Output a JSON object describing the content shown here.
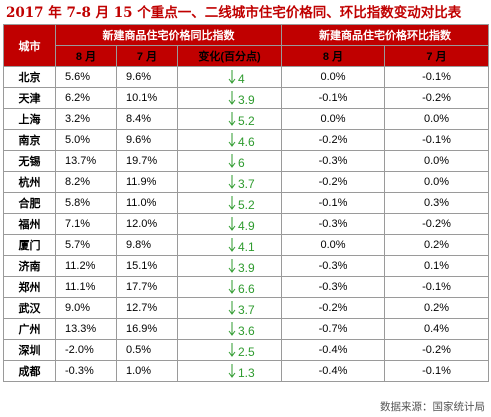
{
  "title": "2017 年 7-8 月 15 个重点一、二线城市住宅价格同、环比指数变动对比表",
  "headers": {
    "city": "城市",
    "yoy_group": "新建商品住宅价格同比指数",
    "mom_group": "新建商品住宅价格环比指数",
    "aug": "8 月",
    "jul": "7 月",
    "change": "变化(百分点)"
  },
  "source": "数据来源：国家统计局",
  "colors": {
    "header_bg": "#c00000",
    "title": "#c00000",
    "decline_arrow": "#2e9b2e",
    "negative_text": "#1a9a1a"
  },
  "chart_data": {
    "type": "table",
    "columns": [
      "城市",
      "同比 8月",
      "同比 7月",
      "同比 变化(百分点)",
      "环比 8月",
      "环比 7月"
    ],
    "rows": [
      {
        "city": "北京",
        "yoy_aug": "5.6%",
        "yoy_jul": "9.6%",
        "change": "4",
        "mom_aug": "0.0%",
        "mom_jul": "-0.1%"
      },
      {
        "city": "天津",
        "yoy_aug": "6.2%",
        "yoy_jul": "10.1%",
        "change": "3.9",
        "mom_aug": "-0.1%",
        "mom_jul": "-0.2%"
      },
      {
        "city": "上海",
        "yoy_aug": "3.2%",
        "yoy_jul": "8.4%",
        "change": "5.2",
        "mom_aug": "0.0%",
        "mom_jul": "0.0%"
      },
      {
        "city": "南京",
        "yoy_aug": "5.0%",
        "yoy_jul": "9.6%",
        "change": "4.6",
        "mom_aug": "-0.2%",
        "mom_jul": "-0.1%"
      },
      {
        "city": "无锡",
        "yoy_aug": "13.7%",
        "yoy_jul": "19.7%",
        "change": "6",
        "mom_aug": "-0.3%",
        "mom_jul": "0.0%"
      },
      {
        "city": "杭州",
        "yoy_aug": "8.2%",
        "yoy_jul": "11.9%",
        "change": "3.7",
        "mom_aug": "-0.2%",
        "mom_jul": "0.0%"
      },
      {
        "city": "合肥",
        "yoy_aug": "5.8%",
        "yoy_jul": "11.0%",
        "change": "5.2",
        "mom_aug": "-0.1%",
        "mom_jul": "0.3%"
      },
      {
        "city": "福州",
        "yoy_aug": "7.1%",
        "yoy_jul": "12.0%",
        "change": "4.9",
        "mom_aug": "-0.3%",
        "mom_jul": "-0.2%"
      },
      {
        "city": "厦门",
        "yoy_aug": "5.7%",
        "yoy_jul": "9.8%",
        "change": "4.1",
        "mom_aug": "0.0%",
        "mom_jul": "0.2%"
      },
      {
        "city": "济南",
        "yoy_aug": "11.2%",
        "yoy_jul": "15.1%",
        "change": "3.9",
        "mom_aug": "-0.3%",
        "mom_jul": "0.1%"
      },
      {
        "city": "郑州",
        "yoy_aug": "11.1%",
        "yoy_jul": "17.7%",
        "change": "6.6",
        "mom_aug": "-0.3%",
        "mom_jul": "-0.1%"
      },
      {
        "city": "武汉",
        "yoy_aug": "9.0%",
        "yoy_jul": "12.7%",
        "change": "3.7",
        "mom_aug": "-0.2%",
        "mom_jul": "0.2%"
      },
      {
        "city": "广州",
        "yoy_aug": "13.3%",
        "yoy_jul": "16.9%",
        "change": "3.6",
        "mom_aug": "-0.7%",
        "mom_jul": "0.4%"
      },
      {
        "city": "深圳",
        "yoy_aug": "-2.0%",
        "yoy_jul": "0.5%",
        "change": "2.5",
        "mom_aug": "-0.4%",
        "mom_jul": "-0.2%"
      },
      {
        "city": "成都",
        "yoy_aug": "-0.3%",
        "yoy_jul": "1.0%",
        "change": "1.3",
        "mom_aug": "-0.4%",
        "mom_jul": "-0.1%"
      }
    ]
  }
}
